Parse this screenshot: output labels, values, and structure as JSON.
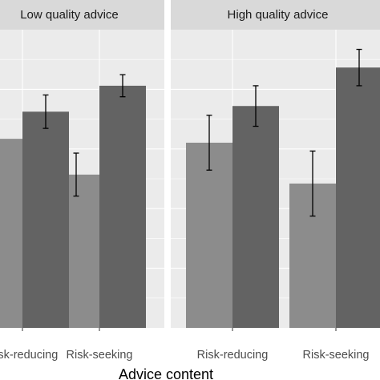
{
  "chart_data": {
    "type": "bar",
    "xlabel": "Advice content",
    "ylabel": "",
    "ylim": [
      0,
      100
    ],
    "grid": true,
    "categories": [
      "Risk-reducing",
      "Risk-seeking"
    ],
    "series_colors": [
      "#8c8c8c",
      "#636363"
    ],
    "panels": [
      {
        "title": "Low quality advice",
        "tick_labels": [
          "Risk-reducing",
          "Risk-seeking"
        ],
        "series": [
          {
            "values": [
              63.4,
              51.4
            ],
            "error": [
              null,
              7.2
            ]
          },
          {
            "values": [
              72.5,
              81.2
            ],
            "error": [
              5.6,
              3.7
            ]
          }
        ]
      },
      {
        "title": "High quality advice",
        "tick_labels": [
          "Risk-reducing",
          "Risk-seeking"
        ],
        "series": [
          {
            "values": [
              62.1,
              48.4
            ],
            "error": [
              9.2,
              10.9
            ]
          },
          {
            "values": [
              74.4,
              87.3
            ],
            "error": [
              6.8,
              6.1
            ]
          }
        ]
      }
    ]
  }
}
